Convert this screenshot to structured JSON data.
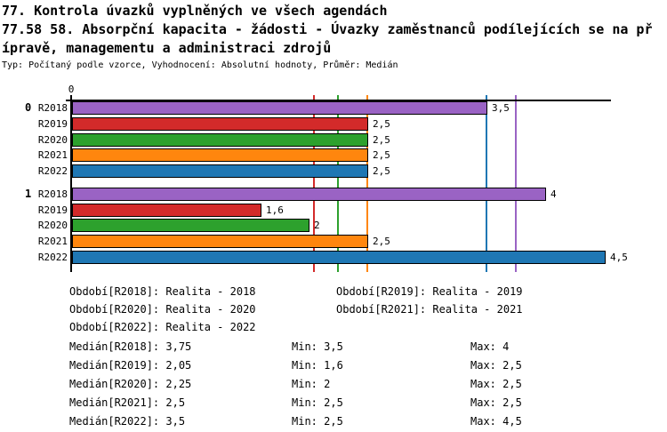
{
  "header": {
    "title_line1": "77. Kontrola úvazků vyplněných ve všech agendách",
    "title_line2": "77.58 58. Absorpční kapacita - žádosti - Úvazky zaměstnanců podílejících se na př",
    "title_line3": "ípravě, managementu a administraci zdrojů",
    "subtitle": "Typ: Počítaný podle vzorce, Vyhodnocení: Absolutní hodnoty, Průměr: Medián"
  },
  "chart_data": {
    "type": "bar",
    "orientation": "horizontal",
    "value_axis": {
      "start_label": "0",
      "min": 0,
      "max": 4.55,
      "grid": false
    },
    "series_colors": {
      "R2018": "#9A63C4",
      "R2019": "#D32A2A",
      "R2020": "#2DA12D",
      "R2021": "#FF860E",
      "R2022": "#1F77B4"
    },
    "groups": [
      {
        "label": "0",
        "bars": [
          {
            "series": "R2018",
            "value": 3.5,
            "display": "3,5"
          },
          {
            "series": "R2019",
            "value": 2.5,
            "display": "2,5"
          },
          {
            "series": "R2020",
            "value": 2.5,
            "display": "2,5"
          },
          {
            "series": "R2021",
            "value": 2.5,
            "display": "2,5"
          },
          {
            "series": "R2022",
            "value": 2.5,
            "display": "2,5"
          }
        ]
      },
      {
        "label": "1",
        "bars": [
          {
            "series": "R2018",
            "value": 4,
            "display": "4"
          },
          {
            "series": "R2019",
            "value": 1.6,
            "display": "1,6"
          },
          {
            "series": "R2020",
            "value": 2,
            "display": "2"
          },
          {
            "series": "R2021",
            "value": 2.5,
            "display": "2,5"
          },
          {
            "series": "R2022",
            "value": 4.5,
            "display": "4,5"
          }
        ]
      }
    ],
    "median_lines": [
      {
        "series": "R2018",
        "value": 3.75
      },
      {
        "series": "R2019",
        "value": 2.05
      },
      {
        "series": "R2020",
        "value": 2.25
      },
      {
        "series": "R2021",
        "value": 2.5
      },
      {
        "series": "R2022",
        "value": 3.5
      }
    ]
  },
  "legend": {
    "items": [
      "Období[R2018]: Realita - 2018",
      "Období[R2019]: Realita - 2019",
      "Období[R2020]: Realita - 2020",
      "Období[R2021]: Realita - 2021",
      "Období[R2022]: Realita - 2022"
    ]
  },
  "stats": {
    "rows": [
      {
        "median": "Medián[R2018]: 3,75",
        "min": "Min: 3,5",
        "max": "Max: 4"
      },
      {
        "median": "Medián[R2019]: 2,05",
        "min": "Min: 1,6",
        "max": "Max: 2,5"
      },
      {
        "median": "Medián[R2020]: 2,25",
        "min": "Min: 2",
        "max": "Max: 2,5"
      },
      {
        "median": "Medián[R2021]: 2,5",
        "min": "Min: 2,5",
        "max": "Max: 2,5"
      },
      {
        "median": "Medián[R2022]: 3,5",
        "min": "Min: 2,5",
        "max": "Max: 4,5"
      }
    ]
  }
}
